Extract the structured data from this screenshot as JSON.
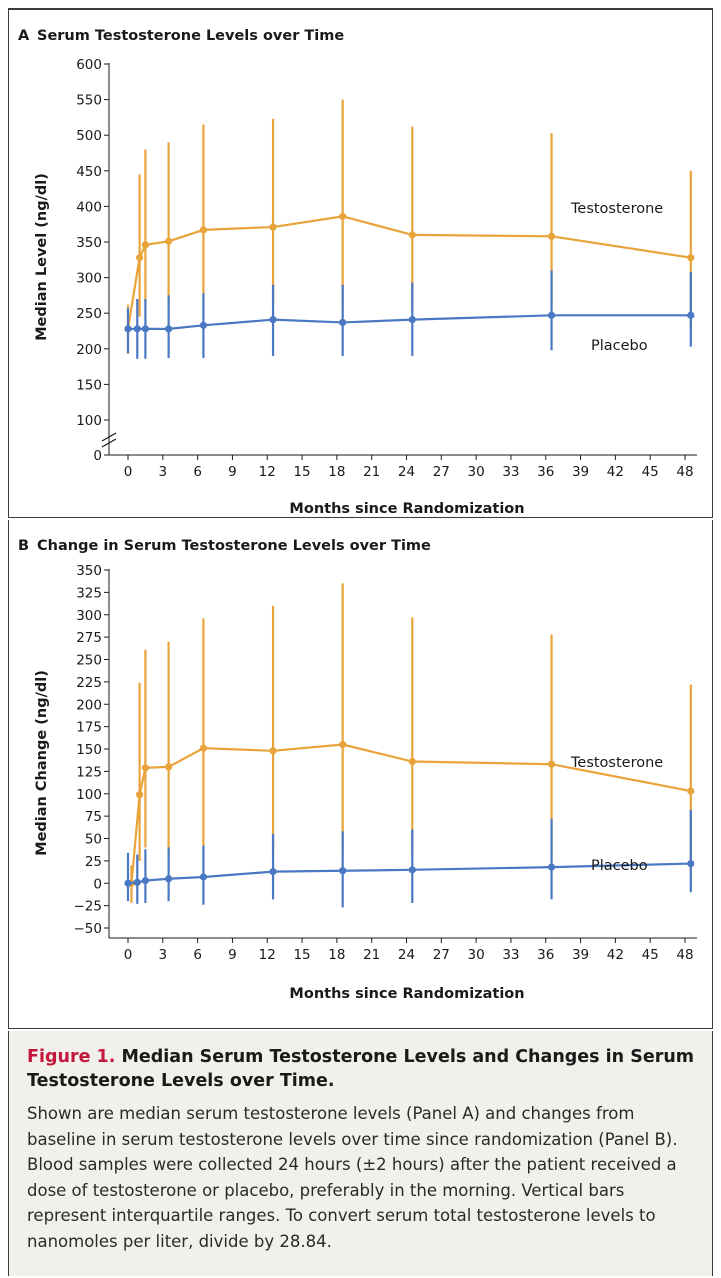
{
  "colors": {
    "testosterone": "#E8A33A",
    "placebo": "#4A78C2",
    "figure_label": "#C4163A",
    "caption_bg": "#F2F0EA"
  },
  "chart_data": [
    {
      "type": "line",
      "panel_letter": "A",
      "title": "Serum Testosterone Levels over Time",
      "xlabel": "Months since Randomization",
      "ylabel": "Median Level (ng/dl)",
      "xlim": [
        -1,
        49
      ],
      "x_ticks": [
        0,
        3,
        6,
        9,
        12,
        15,
        18,
        21,
        24,
        27,
        30,
        33,
        36,
        39,
        42,
        45,
        48
      ],
      "y_ticks": [
        0,
        100,
        150,
        200,
        250,
        300,
        350,
        400,
        450,
        500,
        550,
        600
      ],
      "y_axis_break": [
        0,
        100
      ],
      "grid": false,
      "series": [
        {
          "name": "Testosterone",
          "x": [
            0,
            1,
            1.5,
            3.5,
            6.5,
            12.5,
            18.5,
            24.5,
            36.5,
            48.5
          ],
          "y": [
            228,
            328,
            346,
            351,
            367,
            371,
            386,
            360,
            358,
            328
          ],
          "q1": [
            193,
            245,
            265,
            258,
            268,
            262,
            255,
            255,
            260,
            228
          ],
          "q3": [
            262,
            445,
            480,
            490,
            515,
            523,
            550,
            512,
            503,
            450
          ]
        },
        {
          "name": "Placebo",
          "x": [
            0,
            0.8,
            1.5,
            3.5,
            6.5,
            12.5,
            18.5,
            24.5,
            36.5,
            48.5
          ],
          "y": [
            228,
            228,
            228,
            228,
            233,
            241,
            237,
            241,
            247,
            247
          ],
          "q1": [
            194,
            186,
            186,
            187,
            187,
            190,
            190,
            190,
            198,
            203
          ],
          "q3": [
            257,
            270,
            270,
            275,
            278,
            290,
            290,
            293,
            310,
            308
          ]
        }
      ]
    },
    {
      "type": "line",
      "panel_letter": "B",
      "title": "Change in Serum Testosterone Levels over Time",
      "xlabel": "Months since Randomization",
      "ylabel": "Median Change (ng/dl)",
      "xlim": [
        -1,
        49
      ],
      "ylim": [
        -50,
        350
      ],
      "x_ticks": [
        0,
        3,
        6,
        9,
        12,
        15,
        18,
        21,
        24,
        27,
        30,
        33,
        36,
        39,
        42,
        45,
        48
      ],
      "y_ticks": [
        -50,
        -25,
        0,
        25,
        50,
        75,
        100,
        125,
        150,
        175,
        200,
        225,
        250,
        275,
        300,
        325,
        350
      ],
      "y_tick_labels": [
        "−50",
        "−25",
        "0",
        "25",
        "50",
        "75",
        "100",
        "125",
        "150",
        "175",
        "200",
        "225",
        "250",
        "275",
        "300",
        "325",
        "350"
      ],
      "grid": false,
      "series": [
        {
          "name": "Testosterone",
          "x": [
            0.3,
            1,
            1.5,
            3.5,
            6.5,
            12.5,
            18.5,
            24.5,
            36.5,
            48.5
          ],
          "y": [
            0,
            99,
            129,
            130,
            151,
            148,
            155,
            136,
            133,
            103
          ],
          "q1": [
            -22,
            25,
            40,
            30,
            41,
            35,
            31,
            33,
            27,
            10
          ],
          "q3": [
            20,
            224,
            261,
            270,
            296,
            310,
            335,
            297,
            278,
            222
          ]
        },
        {
          "name": "Placebo",
          "x": [
            0,
            0.8,
            1.5,
            3.5,
            6.5,
            12.5,
            18.5,
            24.5,
            36.5,
            48.5
          ],
          "y": [
            0,
            1,
            3,
            5,
            7,
            13,
            14,
            15,
            18,
            22
          ],
          "q1": [
            -20,
            -23,
            -22,
            -20,
            -24,
            -18,
            -27,
            -22,
            -18,
            -10
          ],
          "q3": [
            34,
            32,
            38,
            40,
            42,
            55,
            58,
            60,
            72,
            82
          ]
        }
      ]
    }
  ],
  "caption": {
    "figure_label": "Figure 1.",
    "title": "Median Serum Testosterone Levels and Changes in Serum Testosterone Levels over Time.",
    "body": "Shown are median serum testosterone levels (Panel A) and changes from baseline in serum testosterone levels over time since randomization (Panel B). Blood samples were collected 24 hours (±2 hours) after the patient received a dose of testosterone or placebo, preferably in the morning. Vertical bars represent interquartile ranges. To convert serum total testosterone levels to nanomoles per liter, divide by 28.84."
  }
}
